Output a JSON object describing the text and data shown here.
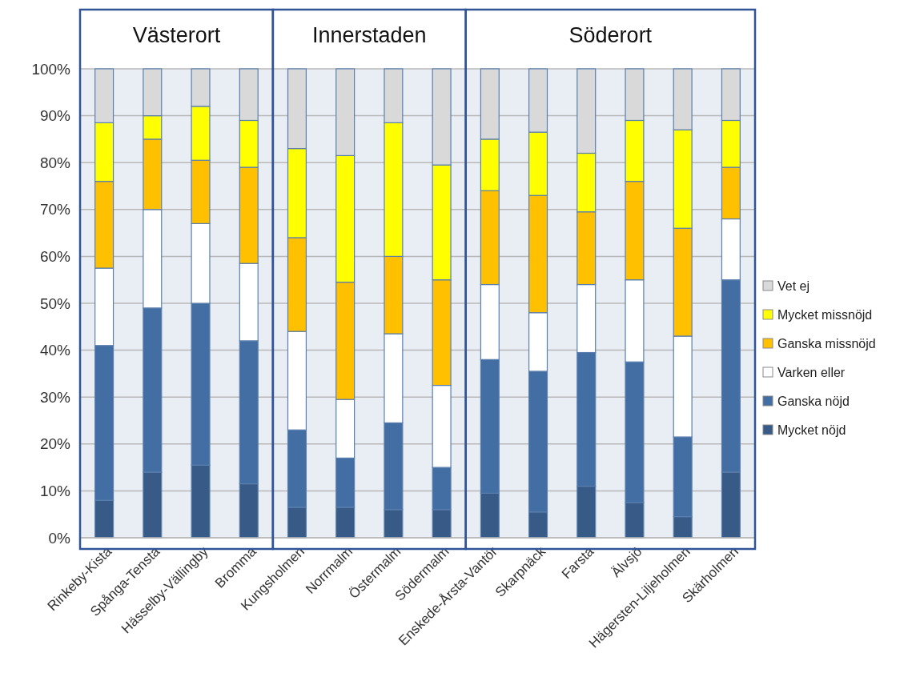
{
  "chart_data": {
    "type": "bar",
    "stacked": true,
    "categories": [
      "Rinkeby-Kista",
      "Spånga-Tensta",
      "Hässelby-Vällingby",
      "Bromma",
      "Kungsholmen",
      "Norrmalm",
      "Östermalm",
      "Södermalm",
      "Enskede-Årsta-Vantör",
      "Skarpnäck",
      "Farsta",
      "Älvsjö",
      "Hägersten-Liljeholmen",
      "Skärholmen"
    ],
    "series": [
      {
        "name": "Mycket nöjd",
        "color": "#375a87",
        "values": [
          8,
          14,
          15.5,
          11.5,
          6.5,
          6.5,
          6,
          6,
          9.5,
          5.5,
          11,
          7.5,
          4.5,
          14
        ]
      },
      {
        "name": "Ganska nöjd",
        "color": "#426ea3",
        "values": [
          33,
          35,
          34.5,
          30.5,
          16.5,
          10.5,
          18.5,
          9,
          28.5,
          30,
          28.5,
          30,
          17,
          41
        ]
      },
      {
        "name": "Varken eller",
        "color": "#ffffff",
        "values": [
          16.5,
          21,
          17,
          16.5,
          21,
          12.5,
          19,
          17.5,
          16,
          12.5,
          14.5,
          17.5,
          21.5,
          13
        ]
      },
      {
        "name": "Ganska missnöjd",
        "color": "#ffc000",
        "values": [
          18.5,
          15,
          13.5,
          20.5,
          20,
          25,
          16.5,
          22.5,
          20,
          25,
          15.5,
          21,
          23,
          11
        ]
      },
      {
        "name": "Mycket missnöjd",
        "color": "#ffff00",
        "values": [
          12.5,
          5,
          11.5,
          10,
          19,
          27,
          28.5,
          24.5,
          11,
          13.5,
          12.5,
          13,
          21,
          10
        ]
      },
      {
        "name": "Vet ej",
        "color": "#d9d9d9",
        "values": [
          11.5,
          10,
          8,
          11,
          17,
          18.5,
          11.5,
          20.5,
          15,
          13.5,
          18,
          11,
          13,
          11
        ]
      }
    ],
    "ylim": [
      0,
      100
    ],
    "yticks": [
      {
        "value": 0,
        "label": "0%"
      },
      {
        "value": 10,
        "label": "10%"
      },
      {
        "value": 20,
        "label": "20%"
      },
      {
        "value": 30,
        "label": "30%"
      },
      {
        "value": 40,
        "label": "40%"
      },
      {
        "value": 50,
        "label": "50%"
      },
      {
        "value": 60,
        "label": "60%"
      },
      {
        "value": 70,
        "label": "70%"
      },
      {
        "value": 80,
        "label": "80%"
      },
      {
        "value": 90,
        "label": "90%"
      },
      {
        "value": 100,
        "label": "100%"
      }
    ],
    "grid": "y",
    "legend": "right",
    "bands": [
      {
        "axis": "x",
        "from": "Rinkeby-Kista",
        "to": "Bromma",
        "label": "Västerort",
        "color": "#e9edf4"
      },
      {
        "axis": "x",
        "from": "Kungsholmen",
        "to": "Södermalm",
        "label": "Innerstaden",
        "color": "#e9edf4"
      },
      {
        "axis": "x",
        "from": "Enskede-Årsta-Vantör",
        "to": "Skärholmen",
        "label": "Söderort",
        "color": "#e9edf4"
      }
    ]
  }
}
